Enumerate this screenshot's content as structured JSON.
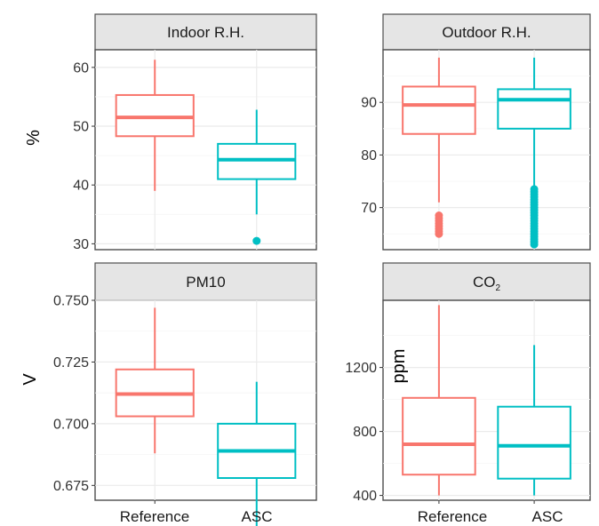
{
  "chart_data": [
    {
      "type": "box",
      "title": "Indoor R.H.",
      "ylabel": "%",
      "ylim": [
        29,
        63
      ],
      "yticks": [
        30,
        40,
        50,
        60
      ],
      "categories": [
        "Reference",
        "ASC"
      ],
      "boxes": [
        {
          "category": "Reference",
          "min": 39,
          "q1": 48.3,
          "median": 51.5,
          "q3": 55.3,
          "max": 61.3,
          "outliers": []
        },
        {
          "category": "ASC",
          "min": 35,
          "q1": 41,
          "median": 44.3,
          "q3": 47,
          "max": 52.8,
          "outliers": [
            30.5
          ]
        }
      ]
    },
    {
      "type": "box",
      "title": "Outdoor R.H.",
      "ylabel": "",
      "ylim": [
        62,
        100
      ],
      "yticks": [
        70,
        80,
        90
      ],
      "categories": [
        "Reference",
        "ASC"
      ],
      "boxes": [
        {
          "category": "Reference",
          "min": 71,
          "q1": 84,
          "median": 89.5,
          "q3": 93,
          "max": 98.5,
          "outliers": [
            65,
            65.5,
            66,
            66.5,
            67,
            67.5,
            68,
            68.5
          ]
        },
        {
          "category": "ASC",
          "min": 74,
          "q1": 85,
          "median": 90.5,
          "q3": 92.5,
          "max": 98.5,
          "outliers": [
            63,
            63.5,
            64,
            64.5,
            65,
            65.5,
            66,
            66.5,
            67,
            67.5,
            68,
            68.5,
            69,
            69.5,
            70,
            70.5,
            71,
            71.5,
            72,
            72.5,
            73,
            73.5
          ]
        }
      ]
    },
    {
      "type": "box",
      "title": "PM10",
      "ylabel": "V",
      "ylim": [
        0.669,
        0.75
      ],
      "yticks": [
        0.675,
        0.7,
        0.725,
        0.75
      ],
      "ytick_labels": [
        "0.675",
        "0.700",
        "0.725",
        "0.750"
      ],
      "categories": [
        "Reference",
        "ASC"
      ],
      "boxes": [
        {
          "category": "Reference",
          "min": 0.688,
          "q1": 0.703,
          "median": 0.712,
          "q3": 0.722,
          "max": 0.747,
          "outliers": []
        },
        {
          "category": "ASC",
          "min": 0.658,
          "q1": 0.678,
          "median": 0.689,
          "q3": 0.7,
          "max": 0.717,
          "outliers": []
        }
      ]
    },
    {
      "type": "box",
      "title_main": "CO",
      "title_sub": "2",
      "ylabel": "ppm",
      "ylim": [
        370,
        1620
      ],
      "yticks": [
        400,
        800,
        1200
      ],
      "categories": [
        "Reference",
        "ASC"
      ],
      "boxes": [
        {
          "category": "Reference",
          "min": 400,
          "q1": 530,
          "median": 720,
          "q3": 1010,
          "max": 1590,
          "outliers": []
        },
        {
          "category": "ASC",
          "min": 400,
          "q1": 505,
          "median": 710,
          "q3": 955,
          "max": 1340,
          "outliers": []
        }
      ]
    }
  ],
  "colors": {
    "reference": "#f8766d",
    "asc": "#00bfc4"
  }
}
